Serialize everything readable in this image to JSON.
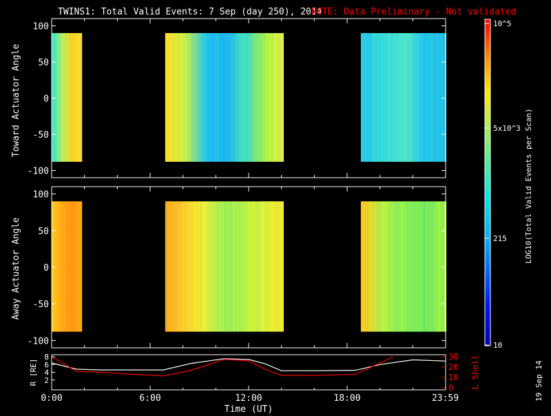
{
  "title": {
    "main": "TWINS1: Total Valid Events:  7 Sep (day 250), 2014",
    "note": "NOTE: Data Preliminary - Not validated",
    "note_color": "#ff0000"
  },
  "stamp": "19 Sep 14",
  "colorbar": {
    "label": "LOG10(Total Valid Events per Scan)",
    "ticks": [
      "10",
      "215",
      "5x10^3",
      "10^5"
    ]
  },
  "chart_data": [
    {
      "type": "heatmap",
      "name": "toward",
      "ylabel": "Toward Actuator Angle",
      "ylim": [
        -110,
        110
      ],
      "yticks": [
        "100",
        "50",
        "0",
        "-50",
        "-100"
      ],
      "xlim": [
        0,
        24
      ],
      "angle_range": [
        -88,
        90
      ],
      "segments": [
        {
          "start": "00:00",
          "end": "01:50",
          "color": [
            "#3ce6c8",
            "#b4f05a",
            "#ffd21e",
            "#ffe132"
          ]
        },
        {
          "start": "06:55",
          "end": "14:05",
          "color": [
            "#ffdc28",
            "#c8f046",
            "#28c8e6",
            "#1eb4f0",
            "#3cdcc8",
            "#a0f050",
            "#e6f03c"
          ]
        },
        {
          "start": "18:50",
          "end": "23:59",
          "color": [
            "#28c8e6",
            "#3cdcd2",
            "#50e6c8",
            "#28c8e6",
            "#1ebef0"
          ]
        }
      ]
    },
    {
      "type": "heatmap",
      "name": "away",
      "ylabel": "Away Actuator Angle",
      "ylim": [
        -110,
        110
      ],
      "yticks": [
        "100",
        "50",
        "0",
        "-50",
        "-100"
      ],
      "xlim": [
        0,
        24
      ],
      "angle_range": [
        -88,
        90
      ],
      "segments": [
        {
          "start": "00:00",
          "end": "01:50",
          "color": [
            "#ffc81e",
            "#ffa51e",
            "#ff9614",
            "#ffaa1e"
          ]
        },
        {
          "start": "06:55",
          "end": "14:05",
          "color": [
            "#ffaa1e",
            "#ffd228",
            "#e6f03c",
            "#a0f050",
            "#b4f048",
            "#dcf03c",
            "#f0e632"
          ]
        },
        {
          "start": "18:50",
          "end": "23:59",
          "color": [
            "#ffc81e",
            "#b4f048",
            "#8cf050",
            "#78ec5a",
            "#a0f048"
          ]
        }
      ]
    },
    {
      "type": "line",
      "name": "orbit",
      "ylabel": "R [RE]",
      "y2label": "L Shell",
      "xlabel": "Time (UT)",
      "xticks": [
        "0:00",
        "6:00",
        "12:00",
        "18:00",
        "23:59"
      ],
      "yticks": [
        "8",
        "6",
        "4",
        "2"
      ],
      "y2ticks": [
        "30",
        "20",
        "10",
        "0"
      ],
      "ylim": [
        0,
        8
      ],
      "y2lim": [
        0,
        30
      ],
      "series": [
        {
          "name": "R",
          "color": "#ffffff",
          "x": [
            0,
            1.5,
            3,
            5,
            6.8,
            8.5,
            10.5,
            12,
            13,
            14,
            16,
            18.5,
            20,
            22,
            23.98
          ],
          "y": [
            6.4,
            4.8,
            4.6,
            4.6,
            4.6,
            6.3,
            7.5,
            7.3,
            6.2,
            4.4,
            4.4,
            4.5,
            6.0,
            7.2,
            6.9
          ]
        },
        {
          "name": "L Shell",
          "color": "#ff0000",
          "x": [
            0,
            1.5,
            3,
            5,
            6.8,
            8.5,
            10.5,
            12,
            13,
            14,
            16,
            18.5,
            20,
            20.8
          ],
          "y": [
            30,
            16,
            15,
            13,
            11.5,
            17,
            27.5,
            26,
            18,
            12,
            12,
            13,
            24,
            30
          ]
        }
      ]
    }
  ]
}
